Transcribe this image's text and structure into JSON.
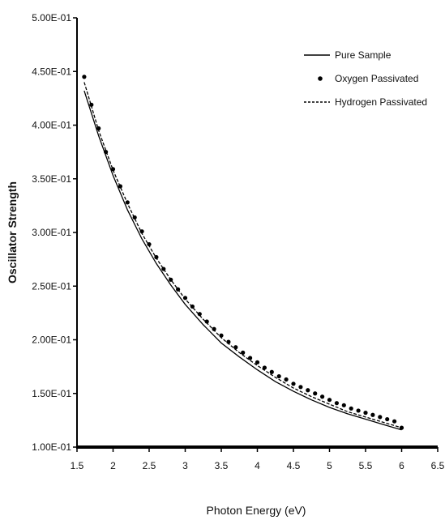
{
  "chart_data": {
    "type": "line",
    "title": "",
    "xlabel": "Photon Energy (eV)",
    "ylabel": "Oscillator Strength",
    "xlim": [
      1.5,
      6.5
    ],
    "ylim": [
      0.1,
      0.5
    ],
    "x_ticks": [
      "1.5",
      "2",
      "2.5",
      "3",
      "3.5",
      "4",
      "4.5",
      "5",
      "5.5",
      "6",
      "6.5"
    ],
    "y_ticks": [
      "1.00E-01",
      "1.50E-01",
      "2.00E-01",
      "2.50E-01",
      "3.00E-01",
      "3.50E-01",
      "4.00E-01",
      "4.50E-01",
      "5.00E-01"
    ],
    "grid": false,
    "legend_position": "top-right",
    "series": [
      {
        "name": "Pure Sample",
        "style": "solid-line",
        "color": "#000000",
        "x": [
          1.6,
          1.8,
          2.0,
          2.2,
          2.4,
          2.6,
          2.8,
          3.0,
          3.25,
          3.5,
          3.75,
          4.0,
          4.25,
          4.5,
          4.75,
          5.0,
          5.25,
          5.5,
          5.75,
          6.0
        ],
        "y": [
          0.432,
          0.39,
          0.353,
          0.321,
          0.294,
          0.271,
          0.251,
          0.233,
          0.214,
          0.197,
          0.184,
          0.172,
          0.161,
          0.152,
          0.144,
          0.137,
          0.131,
          0.126,
          0.121,
          0.116
        ]
      },
      {
        "name": "Oxygen Passivated",
        "style": "dots",
        "color": "#000000",
        "x": [
          1.6,
          1.7,
          1.8,
          1.9,
          2.0,
          2.1,
          2.2,
          2.3,
          2.4,
          2.5,
          2.6,
          2.7,
          2.8,
          2.9,
          3.0,
          3.1,
          3.2,
          3.3,
          3.4,
          3.5,
          3.6,
          3.7,
          3.8,
          3.9,
          4.0,
          4.1,
          4.2,
          4.3,
          4.4,
          4.5,
          4.6,
          4.7,
          4.8,
          4.9,
          5.0,
          5.1,
          5.2,
          5.3,
          5.4,
          5.5,
          5.6,
          5.7,
          5.8,
          5.9,
          6.0
        ],
        "y": [
          0.445,
          0.419,
          0.397,
          0.375,
          0.359,
          0.343,
          0.328,
          0.314,
          0.301,
          0.289,
          0.277,
          0.266,
          0.256,
          0.247,
          0.239,
          0.231,
          0.224,
          0.217,
          0.21,
          0.204,
          0.198,
          0.193,
          0.188,
          0.183,
          0.179,
          0.174,
          0.17,
          0.166,
          0.163,
          0.159,
          0.156,
          0.153,
          0.15,
          0.147,
          0.144,
          0.141,
          0.139,
          0.136,
          0.134,
          0.132,
          0.13,
          0.128,
          0.126,
          0.124,
          0.118
        ]
      },
      {
        "name": "Hydrogen Passivated",
        "style": "dashed-line",
        "color": "#000000",
        "x": [
          1.6,
          1.8,
          2.0,
          2.2,
          2.4,
          2.6,
          2.8,
          3.0,
          3.25,
          3.5,
          3.75,
          4.0,
          4.25,
          4.5,
          4.75,
          5.0,
          5.25,
          5.5,
          5.75,
          6.0
        ],
        "y": [
          0.44,
          0.395,
          0.358,
          0.327,
          0.299,
          0.276,
          0.256,
          0.238,
          0.219,
          0.202,
          0.188,
          0.176,
          0.165,
          0.155,
          0.147,
          0.14,
          0.133,
          0.128,
          0.123,
          0.118
        ]
      }
    ]
  }
}
